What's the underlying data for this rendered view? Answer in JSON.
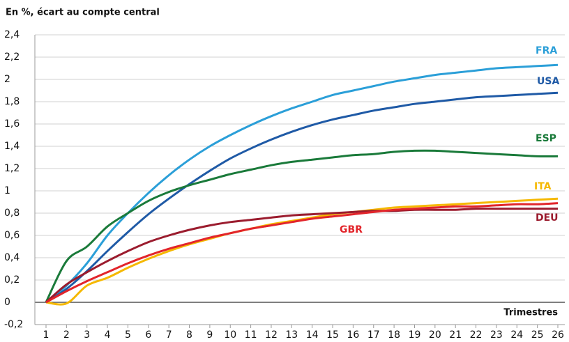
{
  "chart_data": {
    "type": "line",
    "title": "En %, écart au compte central",
    "x_label": "Trimestres",
    "x": [
      1,
      2,
      3,
      4,
      5,
      6,
      7,
      8,
      9,
      10,
      11,
      12,
      13,
      14,
      15,
      16,
      17,
      18,
      19,
      20,
      21,
      22,
      23,
      24,
      25,
      26
    ],
    "xlim": [
      1,
      26
    ],
    "ylim": [
      -0.2,
      2.4
    ],
    "yticks": [
      {
        "value": -0.2,
        "label": "-0,2"
      },
      0,
      {
        "value": 0.2,
        "label": "0,2"
      },
      {
        "value": 0.4,
        "label": "0,4"
      },
      {
        "value": 0.6,
        "label": "0,6"
      },
      {
        "value": 0.8,
        "label": "0,8"
      },
      1,
      {
        "value": 1.2,
        "label": "1,2"
      },
      {
        "value": 1.4,
        "label": "1,4"
      },
      {
        "value": 1.6,
        "label": "1,6"
      },
      {
        "value": 1.8,
        "label": "1,8"
      },
      2,
      {
        "value": 2.2,
        "label": "2,2"
      },
      {
        "value": 2.4,
        "label": "2,4"
      }
    ],
    "grid": true,
    "series": [
      {
        "name": "FRA",
        "color": "#2b9fd8",
        "values": [
          0,
          0.15,
          0.35,
          0.6,
          0.8,
          0.98,
          1.14,
          1.28,
          1.4,
          1.5,
          1.59,
          1.67,
          1.74,
          1.8,
          1.86,
          1.9,
          1.94,
          1.98,
          2.01,
          2.04,
          2.06,
          2.08,
          2.1,
          2.11,
          2.12,
          2.13
        ]
      },
      {
        "name": "USA",
        "color": "#1f5aa6",
        "values": [
          0,
          0.12,
          0.28,
          0.46,
          0.63,
          0.79,
          0.93,
          1.06,
          1.18,
          1.29,
          1.38,
          1.46,
          1.53,
          1.59,
          1.64,
          1.68,
          1.72,
          1.75,
          1.78,
          1.8,
          1.82,
          1.84,
          1.85,
          1.86,
          1.87,
          1.88
        ]
      },
      {
        "name": "ESP",
        "color": "#1a7a3a",
        "values": [
          0,
          0.37,
          0.5,
          0.68,
          0.8,
          0.91,
          0.99,
          1.05,
          1.1,
          1.15,
          1.19,
          1.23,
          1.26,
          1.28,
          1.3,
          1.32,
          1.33,
          1.35,
          1.36,
          1.36,
          1.35,
          1.34,
          1.33,
          1.32,
          1.31,
          1.31
        ]
      },
      {
        "name": "ITA",
        "color": "#f5b800",
        "values": [
          0,
          -0.01,
          0.15,
          0.22,
          0.31,
          0.39,
          0.46,
          0.52,
          0.57,
          0.62,
          0.66,
          0.7,
          0.73,
          0.76,
          0.79,
          0.81,
          0.83,
          0.85,
          0.86,
          0.87,
          0.88,
          0.89,
          0.9,
          0.91,
          0.92,
          0.93
        ]
      },
      {
        "name": "DEU",
        "color": "#9b1c2e",
        "values": [
          0,
          0.16,
          0.27,
          0.37,
          0.46,
          0.54,
          0.6,
          0.65,
          0.69,
          0.72,
          0.74,
          0.76,
          0.78,
          0.79,
          0.8,
          0.81,
          0.82,
          0.82,
          0.83,
          0.83,
          0.83,
          0.84,
          0.84,
          0.84,
          0.84,
          0.84
        ]
      },
      {
        "name": "GBR",
        "color": "#e2252b",
        "values": [
          0,
          0.1,
          0.19,
          0.27,
          0.35,
          0.42,
          0.48,
          0.53,
          0.58,
          0.62,
          0.66,
          0.69,
          0.72,
          0.75,
          0.77,
          0.79,
          0.81,
          0.83,
          0.84,
          0.85,
          0.86,
          0.86,
          0.87,
          0.88,
          0.88,
          0.89
        ]
      }
    ]
  }
}
